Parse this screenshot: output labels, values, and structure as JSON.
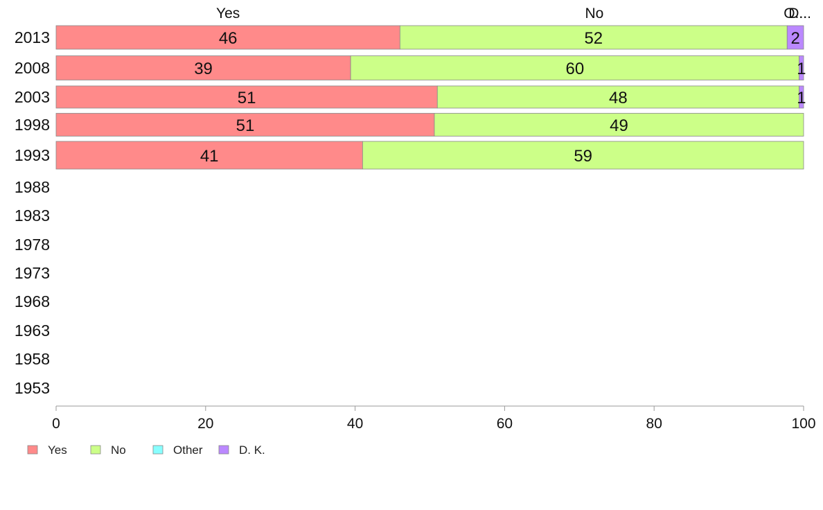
{
  "chart_data": {
    "type": "bar",
    "orientation": "horizontal",
    "stacked": true,
    "categories": [
      "2013",
      "2008",
      "2003",
      "1998",
      "1993",
      "1988",
      "1983",
      "1978",
      "1973",
      "1968",
      "1963",
      "1958",
      "1953"
    ],
    "series": [
      {
        "name": "Yes",
        "color": "#FF8A8A",
        "values": [
          46,
          39.4,
          51,
          50.6,
          41,
          null,
          null,
          null,
          null,
          null,
          null,
          null,
          null
        ],
        "labels": [
          "46",
          "39",
          "51",
          "51",
          "41",
          "",
          "",
          "",
          "",
          "",
          "",
          "",
          ""
        ]
      },
      {
        "name": "No",
        "color": "#CCFF88",
        "values": [
          51.8,
          60,
          48.4,
          49.4,
          59,
          null,
          null,
          null,
          null,
          null,
          null,
          null,
          null
        ],
        "labels": [
          "52",
          "60",
          "48",
          "49",
          "59",
          "",
          "",
          "",
          "",
          "",
          "",
          "",
          ""
        ]
      },
      {
        "name": "Other",
        "color": "#88FFFF",
        "values": [
          0,
          0,
          0,
          0,
          0,
          null,
          null,
          null,
          null,
          null,
          null,
          null,
          null
        ],
        "labels": [
          "",
          "",
          "",
          "",
          "",
          "",
          "",
          "",
          "",
          "",
          "",
          "",
          ""
        ]
      },
      {
        "name": "D. K.",
        "color": "#BB88FF",
        "values": [
          2.2,
          0.6,
          0.6,
          0,
          0,
          null,
          null,
          null,
          null,
          null,
          null,
          null,
          null
        ],
        "labels": [
          "2",
          "1",
          "1",
          "",
          "",
          "",
          "",
          "",
          "",
          "",
          "",
          "",
          ""
        ]
      }
    ],
    "column_headers": [
      {
        "text": "Yes",
        "at": 23
      },
      {
        "text": "No",
        "at": 72
      },
      {
        "text": "O...",
        "at": 98.9
      },
      {
        "text": "D...",
        "at": 99.5
      }
    ],
    "xlim": [
      0,
      100
    ],
    "xticks": [
      "0",
      "20",
      "40",
      "60",
      "80",
      "100"
    ],
    "legend_position": "bottom-left",
    "title": "",
    "xlabel": "",
    "ylabel": ""
  }
}
